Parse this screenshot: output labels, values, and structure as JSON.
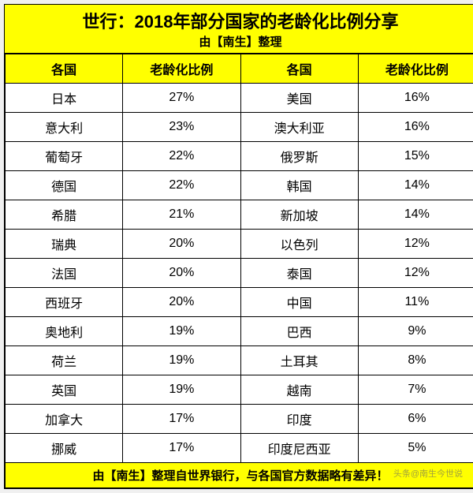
{
  "header": {
    "title": "世行：2018年部分国家的老龄化比例分享",
    "subtitle": "由【南生】整理"
  },
  "table": {
    "columns": [
      "各国",
      "老龄化比例",
      "各国",
      "老龄化比例"
    ],
    "rows": [
      [
        "日本",
        "27%",
        "美国",
        "16%"
      ],
      [
        "意大利",
        "23%",
        "澳大利亚",
        "16%"
      ],
      [
        "葡萄牙",
        "22%",
        "俄罗斯",
        "15%"
      ],
      [
        "德国",
        "22%",
        "韩国",
        "14%"
      ],
      [
        "希腊",
        "21%",
        "新加坡",
        "14%"
      ],
      [
        "瑞典",
        "20%",
        "以色列",
        "12%"
      ],
      [
        "法国",
        "20%",
        "泰国",
        "12%"
      ],
      [
        "西班牙",
        "20%",
        "中国",
        "11%"
      ],
      [
        "奥地利",
        "19%",
        "巴西",
        "9%"
      ],
      [
        "荷兰",
        "19%",
        "土耳其",
        "8%"
      ],
      [
        "英国",
        "19%",
        "越南",
        "7%"
      ],
      [
        "加拿大",
        "17%",
        "印度",
        "6%"
      ],
      [
        "挪威",
        "17%",
        "印度尼西亚",
        "5%"
      ]
    ],
    "footer": "由【南生】整理自世界银行，与各国官方数据略有差异！",
    "header_bg": "#ffff00",
    "cell_bg": "#ffffff",
    "border_color": "#000000",
    "title_fontsize": 22,
    "header_fontsize": 16,
    "cell_fontsize": 16
  },
  "watermark": "头条@南生今世说"
}
